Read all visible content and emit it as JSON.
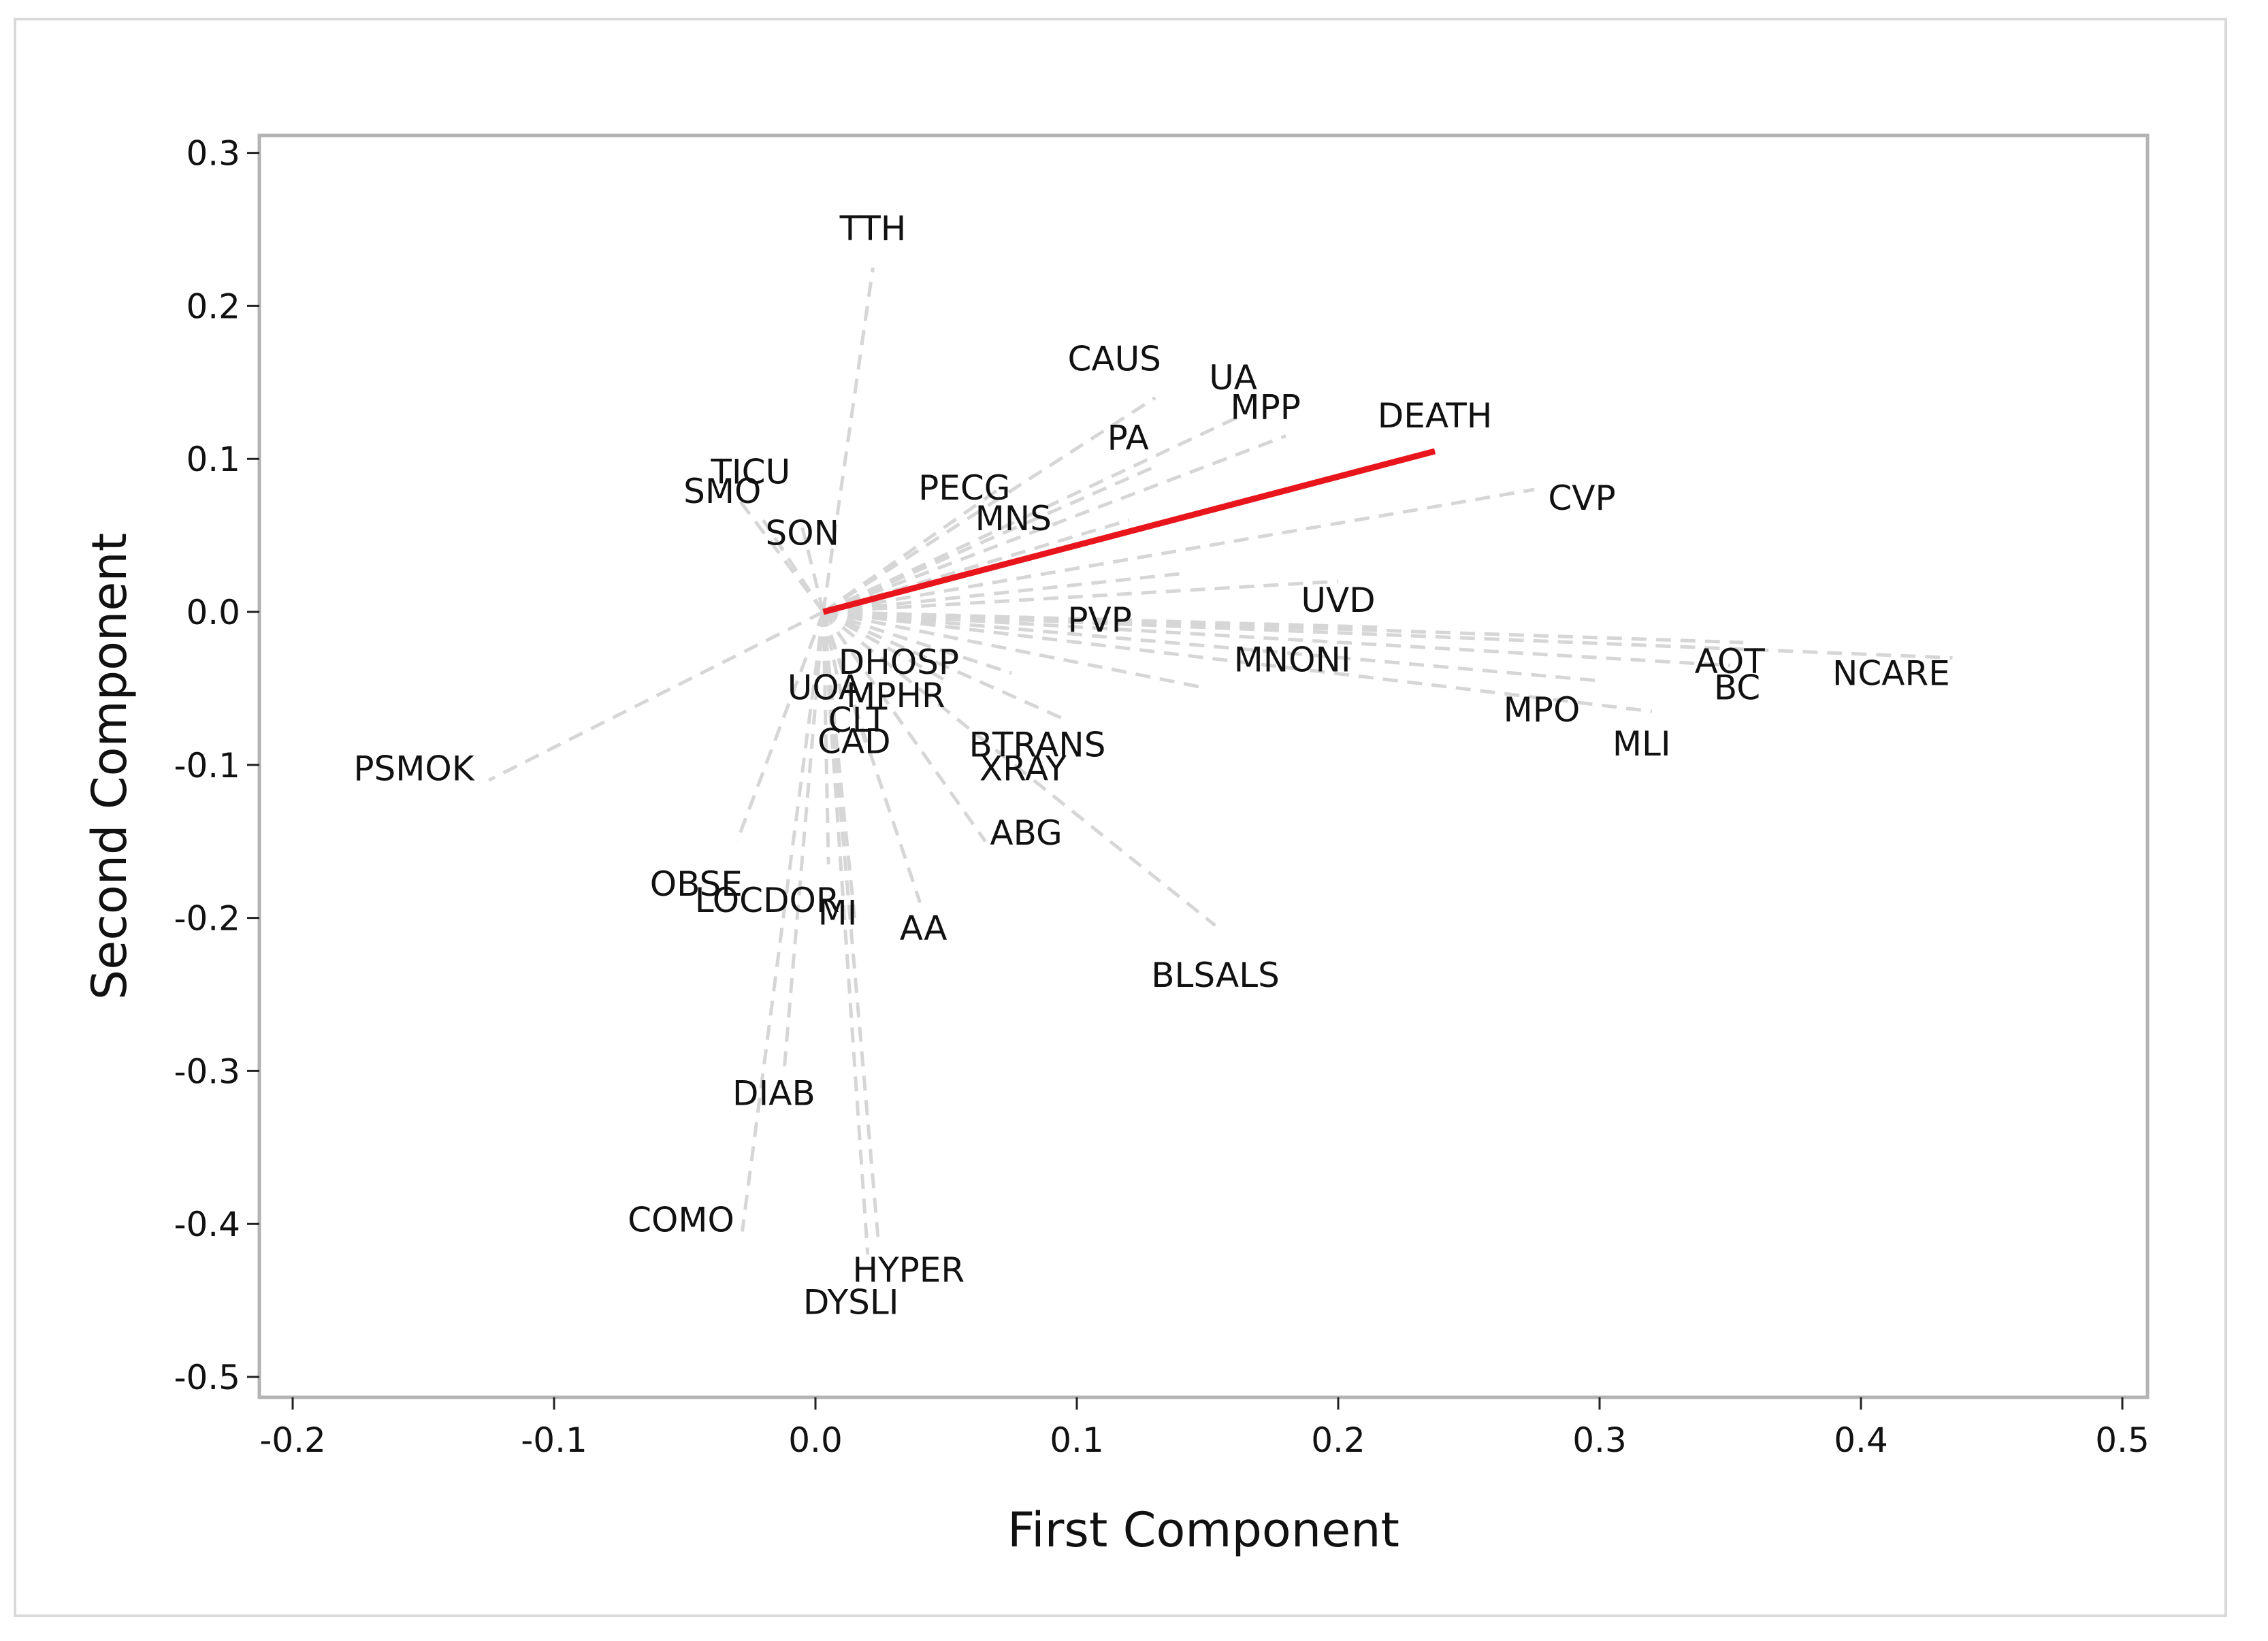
{
  "chart_data": {
    "type": "scatter",
    "subtype": "loading-plot",
    "title": "",
    "xlabel": "First Component",
    "ylabel": "Second Component",
    "xlim": [
      -0.21,
      0.51
    ],
    "ylim": [
      -0.51,
      0.31
    ],
    "xticks": [
      -0.2,
      -0.1,
      0.0,
      0.1,
      0.2,
      0.3,
      0.4,
      0.5
    ],
    "xtick_labels": [
      "-0.2",
      "-0.1",
      "0.0",
      "0.1",
      "0.2",
      "0.3",
      "0.4",
      "0.5"
    ],
    "yticks": [
      0.3,
      0.2,
      0.1,
      0.0,
      -0.1,
      -0.2,
      -0.3,
      -0.4,
      -0.5
    ],
    "ytick_labels": [
      "0.3",
      "0.2",
      "0.1",
      "0.0",
      "-0.1",
      "-0.2",
      "-0.3",
      "-0.4",
      "-0.5"
    ],
    "grid": false,
    "origin": [
      0.003,
      0.0
    ],
    "colors": {
      "loading_line": "#d6d6d6",
      "highlight": "#e8161c",
      "plot_border": "#b3b3b3"
    },
    "highlighted_variable": "DEATH",
    "variables": [
      {
        "name": "TTH",
        "x": 0.022,
        "y": 0.225
      },
      {
        "name": "CAUS",
        "x": 0.13,
        "y": 0.14
      },
      {
        "name": "UA",
        "x": 0.165,
        "y": 0.13
      },
      {
        "name": "MPP",
        "x": 0.18,
        "y": 0.115
      },
      {
        "name": "DEATH",
        "x": 0.237,
        "y": 0.105
      },
      {
        "name": "PA",
        "x": 0.13,
        "y": 0.095
      },
      {
        "name": "PECG",
        "x": 0.07,
        "y": 0.08
      },
      {
        "name": "MNS",
        "x": 0.12,
        "y": 0.06
      },
      {
        "name": "CVP",
        "x": 0.275,
        "y": 0.08
      },
      {
        "name": "PVP",
        "x": 0.14,
        "y": 0.025
      },
      {
        "name": "UVD",
        "x": 0.2,
        "y": 0.02
      },
      {
        "name": "SMO",
        "x": -0.02,
        "y": 0.06
      },
      {
        "name": "TICU",
        "x": -0.03,
        "y": 0.075
      },
      {
        "name": "SON",
        "x": -0.005,
        "y": 0.055
      },
      {
        "name": "AOT",
        "x": 0.355,
        "y": -0.02
      },
      {
        "name": "NCARE",
        "x": 0.435,
        "y": -0.03
      },
      {
        "name": "BC",
        "x": 0.35,
        "y": -0.035
      },
      {
        "name": "DHOSP",
        "x": 0.11,
        "y": -0.005
      },
      {
        "name": "MNONI",
        "x": 0.215,
        "y": -0.01
      },
      {
        "name": "MPO",
        "x": 0.3,
        "y": -0.045
      },
      {
        "name": "MLI",
        "x": 0.32,
        "y": -0.065
      },
      {
        "name": "MPHR",
        "x": 0.075,
        "y": -0.04
      },
      {
        "name": "XRAY",
        "x": 0.095,
        "y": -0.07
      },
      {
        "name": "CLT",
        "x": 0.05,
        "y": -0.045
      },
      {
        "name": "UOA",
        "x": 0.01,
        "y": -0.055
      },
      {
        "name": "CAD",
        "x": 0.02,
        "y": -0.09
      },
      {
        "name": "BTRANS",
        "x": 0.15,
        "y": -0.05
      },
      {
        "name": "PSMOK",
        "x": -0.125,
        "y": -0.11
      },
      {
        "name": "OBSE",
        "x": -0.03,
        "y": -0.15
      },
      {
        "name": "LOCDOR",
        "x": 0.005,
        "y": -0.165
      },
      {
        "name": "ABG",
        "x": 0.065,
        "y": -0.15
      },
      {
        "name": "MI",
        "x": 0.015,
        "y": -0.2
      },
      {
        "name": "AA",
        "x": 0.04,
        "y": -0.19
      },
      {
        "name": "BLSALS",
        "x": 0.153,
        "y": -0.205
      },
      {
        "name": "DIAB",
        "x": -0.012,
        "y": -0.3
      },
      {
        "name": "COMO",
        "x": -0.028,
        "y": -0.405
      },
      {
        "name": "HYPER",
        "x": 0.02,
        "y": -0.42
      },
      {
        "name": "DYSLI",
        "x": 0.024,
        "y": -0.41
      }
    ]
  }
}
